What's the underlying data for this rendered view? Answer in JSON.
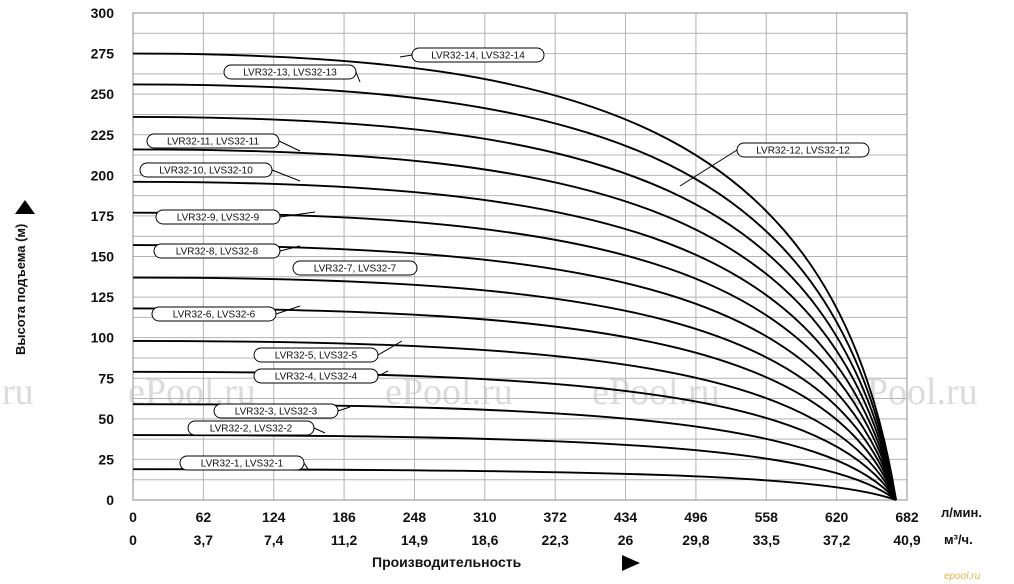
{
  "chart_data": {
    "type": "line",
    "ylabel": "Высота подъема (м)",
    "xlabel": "Производительность",
    "ylim": [
      0,
      300
    ],
    "y_ticks": [
      0,
      25,
      50,
      75,
      100,
      125,
      150,
      175,
      200,
      225,
      250,
      275,
      300
    ],
    "x_ticks_lmin": [
      "0",
      "62",
      "124",
      "186",
      "248",
      "310",
      "372",
      "434",
      "496",
      "558",
      "620",
      "682"
    ],
    "x_ticks_m3h": [
      "0",
      "3,7",
      "7,4",
      "11,2",
      "14,9",
      "18,6",
      "22,3",
      "26",
      "29,8",
      "33,5",
      "37,2",
      "40,9"
    ],
    "x_unit_lmin": "л/мин.",
    "x_unit_m3h": "м³/ч.",
    "xlim_lmin": [
      0,
      682
    ],
    "grid": true,
    "end_flow_lmin": 658,
    "series": [
      {
        "name": "LVR32-1, LVS32-1",
        "values": [
          {
            "x": 0,
            "y": 19
          },
          {
            "x": 658,
            "y": 0
          }
        ]
      },
      {
        "name": "LVR32-2, LVS32-2",
        "values": [
          {
            "x": 0,
            "y": 40
          },
          {
            "x": 658,
            "y": 0
          }
        ]
      },
      {
        "name": "LVR32-3, LVS32-3",
        "values": [
          {
            "x": 0,
            "y": 59
          },
          {
            "x": 658,
            "y": 0
          }
        ]
      },
      {
        "name": "LVR32-4, LVS32-4",
        "values": [
          {
            "x": 0,
            "y": 79
          },
          {
            "x": 658,
            "y": 0
          }
        ]
      },
      {
        "name": "LVR32-5, LVS32-5",
        "values": [
          {
            "x": 0,
            "y": 98
          },
          {
            "x": 658,
            "y": 0
          }
        ]
      },
      {
        "name": "LVR32-6, LVS32-6",
        "values": [
          {
            "x": 0,
            "y": 118
          },
          {
            "x": 658,
            "y": 0
          }
        ]
      },
      {
        "name": "LVR32-7, LVS32-7",
        "values": [
          {
            "x": 0,
            "y": 137
          },
          {
            "x": 658,
            "y": 0
          }
        ]
      },
      {
        "name": "LVR32-8, LVS32-8",
        "values": [
          {
            "x": 0,
            "y": 157
          },
          {
            "x": 658,
            "y": 0
          }
        ]
      },
      {
        "name": "LVR32-9, LVS32-9",
        "values": [
          {
            "x": 0,
            "y": 177
          },
          {
            "x": 658,
            "y": 0
          }
        ]
      },
      {
        "name": "LVR32-10, LVS32-10",
        "values": [
          {
            "x": 0,
            "y": 196
          },
          {
            "x": 658,
            "y": 0
          }
        ]
      },
      {
        "name": "LVR32-11, LVS32-11",
        "values": [
          {
            "x": 0,
            "y": 216
          },
          {
            "x": 658,
            "y": 0
          }
        ]
      },
      {
        "name": "LVR32-12, LVS32-12",
        "values": [
          {
            "x": 0,
            "y": 236
          },
          {
            "x": 658,
            "y": 0
          }
        ]
      },
      {
        "name": "LVR32-13, LVS32-13",
        "values": [
          {
            "x": 0,
            "y": 256
          },
          {
            "x": 658,
            "y": 0
          }
        ]
      },
      {
        "name": "LVR32-14, LVS32-14",
        "values": [
          {
            "x": 0,
            "y": 275
          },
          {
            "x": 658,
            "y": 0
          }
        ]
      }
    ]
  },
  "watermarks": [
    "ru",
    "ePool.ru",
    "ePool.ru",
    "ePool.ru",
    "ePool.ru"
  ],
  "corner_mark": "epool.ru",
  "colors": {
    "line": "#000000",
    "grid": "#b4b4b4",
    "watermark": "#bdbdbd",
    "corner_mark": "#e3b54a"
  }
}
